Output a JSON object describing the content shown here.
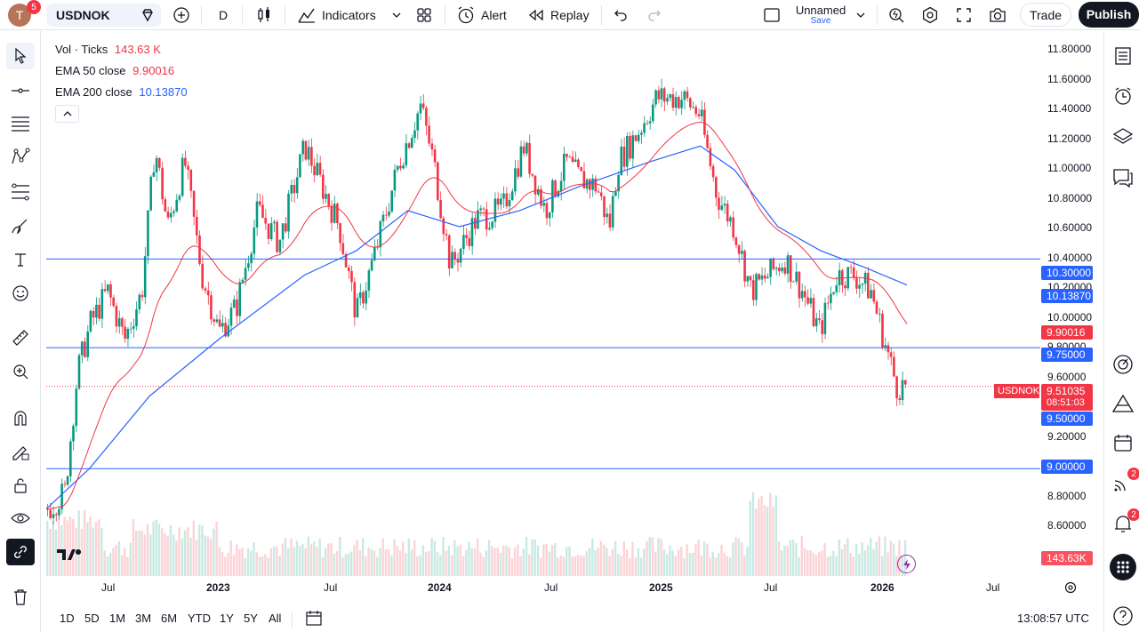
{
  "topbar": {
    "avatar_letter": "T",
    "avatar_badge": "5",
    "symbol": "USDNOK",
    "interval": "D",
    "indicators_label": "Indicators",
    "alert_label": "Alert",
    "replay_label": "Replay",
    "layout_name": "Unnamed",
    "save_label": "Save",
    "trade_label": "Trade",
    "publish_label": "Publish"
  },
  "legend": {
    "vol_name": "Vol · Ticks",
    "vol_value": "143.63 K",
    "ema50_name": "EMA 50 close",
    "ema50_value": "9.90016",
    "ema200_name": "EMA 200 close",
    "ema200_value": "10.13870"
  },
  "price_axis": {
    "ticks": [
      "11.80000",
      "11.60000",
      "11.40000",
      "11.20000",
      "11.00000",
      "10.80000",
      "10.60000",
      "10.40000",
      "10.20000",
      "10.00000",
      "9.80000",
      "9.60000",
      "9.20000",
      "8.80000",
      "8.60000"
    ],
    "labels": {
      "l1": "10.30000",
      "l2": "10.13870",
      "l3": "9.90016",
      "l4": "9.75000",
      "l5": "9.51035",
      "l5b": "08:51:03",
      "l6": "9.50000",
      "l7": "9.00000",
      "l8": "143.63K"
    },
    "symbol_tag": "USDNOK"
  },
  "time_axis": {
    "ticks": [
      "Jul",
      "2023",
      "Jul",
      "2024",
      "Jul",
      "2025",
      "Jul",
      "2026",
      "Jul"
    ]
  },
  "bottombar": {
    "ranges": [
      "1D",
      "5D",
      "1M",
      "3M",
      "6M",
      "YTD",
      "1Y",
      "5Y",
      "All"
    ],
    "clock": "13:08:57 UTC"
  },
  "rightbar": {
    "badge_a": "2",
    "badge_b": "2"
  },
  "colors": {
    "ema50": "#f23645",
    "ema200": "#2962ff",
    "hline": "#2962ff",
    "up": "#089981",
    "down": "#f23645",
    "accent": "#2962ff"
  },
  "chart_data": {
    "type": "candlestick",
    "symbol": "USDNOK",
    "interval": "D",
    "ylim": [
      8.5,
      11.85
    ],
    "hlines": [
      10.3,
      9.75,
      9.0
    ],
    "last_price": 9.51035,
    "close_path": [
      [
        0,
        8.75
      ],
      [
        0.02,
        8.85
      ],
      [
        0.035,
        9.6
      ],
      [
        0.05,
        9.9
      ],
      [
        0.07,
        10.1
      ],
      [
        0.09,
        9.8
      ],
      [
        0.11,
        10.1
      ],
      [
        0.125,
        11.0
      ],
      [
        0.14,
        10.5
      ],
      [
        0.16,
        10.9
      ],
      [
        0.18,
        10.2
      ],
      [
        0.2,
        9.85
      ],
      [
        0.22,
        10.0
      ],
      [
        0.245,
        10.6
      ],
      [
        0.27,
        10.4
      ],
      [
        0.3,
        11.0
      ],
      [
        0.34,
        10.5
      ],
      [
        0.36,
        9.95
      ],
      [
        0.38,
        10.3
      ],
      [
        0.41,
        10.9
      ],
      [
        0.435,
        11.25
      ],
      [
        0.45,
        10.9
      ],
      [
        0.47,
        10.25
      ],
      [
        0.5,
        10.55
      ],
      [
        0.53,
        10.6
      ],
      [
        0.555,
        11.0
      ],
      [
        0.58,
        10.6
      ],
      [
        0.605,
        10.9
      ],
      [
        0.62,
        10.8
      ],
      [
        0.64,
        10.75
      ],
      [
        0.655,
        10.5
      ],
      [
        0.665,
        10.9
      ],
      [
        0.69,
        11.1
      ],
      [
        0.71,
        11.3
      ],
      [
        0.74,
        11.3
      ],
      [
        0.76,
        11.2
      ],
      [
        0.78,
        10.7
      ],
      [
        0.8,
        10.5
      ],
      [
        0.82,
        10.1
      ],
      [
        0.84,
        10.2
      ],
      [
        0.86,
        10.3
      ],
      [
        0.88,
        10.1
      ],
      [
        0.9,
        9.85
      ],
      [
        0.92,
        10.2
      ],
      [
        0.94,
        10.2
      ],
      [
        0.96,
        10.1
      ],
      [
        0.975,
        9.8
      ],
      [
        0.99,
        9.51
      ]
    ],
    "ema200_path": [
      [
        0,
        8.75
      ],
      [
        0.05,
        9.0
      ],
      [
        0.12,
        9.45
      ],
      [
        0.2,
        9.8
      ],
      [
        0.3,
        10.2
      ],
      [
        0.36,
        10.35
      ],
      [
        0.42,
        10.6
      ],
      [
        0.48,
        10.5
      ],
      [
        0.55,
        10.6
      ],
      [
        0.62,
        10.75
      ],
      [
        0.7,
        10.9
      ],
      [
        0.76,
        11.0
      ],
      [
        0.8,
        10.85
      ],
      [
        0.85,
        10.5
      ],
      [
        0.9,
        10.35
      ],
      [
        0.95,
        10.25
      ],
      [
        1.0,
        10.1387
      ]
    ],
    "ema50_value": 9.90016,
    "ema200_value": 10.1387,
    "volume_last": "143.63K"
  }
}
